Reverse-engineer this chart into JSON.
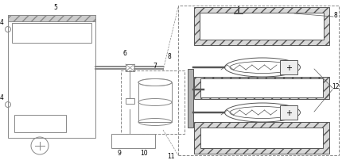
{
  "bg_color": "#ffffff",
  "line_color": "#888888",
  "dark_line": "#555555",
  "hatch_color": "#aaaaaa"
}
